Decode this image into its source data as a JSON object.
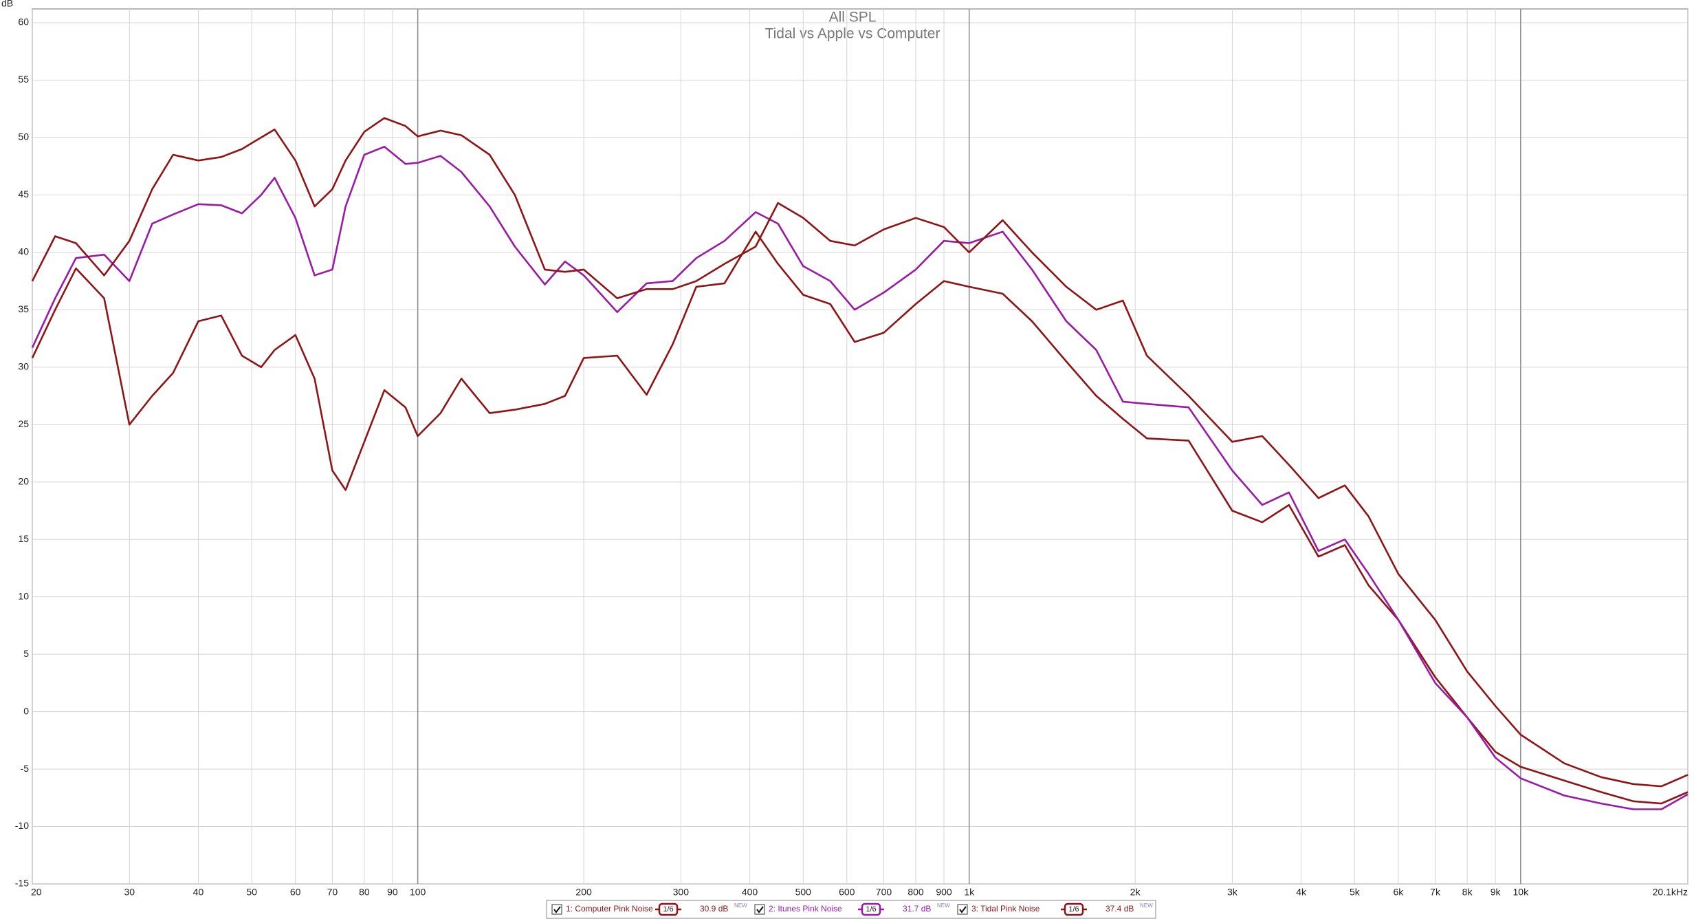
{
  "chart_data": {
    "type": "line",
    "title": "All SPL",
    "subtitle": "Tidal vs Apple vs Computer",
    "y_label": "dB",
    "xscale": "log",
    "grid": true,
    "xlim": [
      20,
      20100
    ],
    "ylim": [
      -15,
      60
    ],
    "xticks": [
      20,
      30,
      40,
      50,
      60,
      70,
      80,
      90,
      100,
      200,
      300,
      400,
      500,
      600,
      700,
      800,
      900,
      {
        "value": 1000,
        "label": "1k"
      },
      {
        "value": 2000,
        "label": "2k"
      },
      {
        "value": 3000,
        "label": "3k"
      },
      {
        "value": 4000,
        "label": "4k"
      },
      {
        "value": 5000,
        "label": "5k"
      },
      {
        "value": 6000,
        "label": "6k"
      },
      {
        "value": 7000,
        "label": "7k"
      },
      {
        "value": 8000,
        "label": "8k"
      },
      {
        "value": 9000,
        "label": "9k"
      },
      {
        "value": 10000,
        "label": "10k"
      },
      {
        "value": 20100,
        "label": "20.1kHz"
      }
    ],
    "yticks": [
      -15,
      -10,
      -5,
      0,
      5,
      10,
      15,
      20,
      25,
      30,
      35,
      40,
      45,
      50,
      55,
      60
    ],
    "x": [
      20,
      22,
      24,
      27,
      30,
      33,
      36,
      40,
      44,
      48,
      52,
      55,
      60,
      65,
      70,
      74,
      80,
      87,
      95,
      100,
      110,
      120,
      135,
      150,
      170,
      185,
      200,
      230,
      260,
      290,
      320,
      360,
      410,
      450,
      500,
      560,
      620,
      700,
      800,
      900,
      1000,
      1150,
      1300,
      1500,
      1700,
      1900,
      2100,
      2500,
      3000,
      3400,
      3800,
      4300,
      4800,
      5300,
      6000,
      7000,
      8000,
      9000,
      10000,
      12000,
      14000,
      16000,
      18000,
      20100
    ],
    "series": [
      {
        "name": "1: Computer Pink Noise",
        "color": "#8e1416",
        "smoothing": "1/6",
        "level": "30.9 dB",
        "tag": "NEW",
        "values": [
          30.8,
          35,
          38.6,
          36,
          25,
          27.5,
          29.5,
          34,
          34.5,
          31,
          30,
          31.5,
          32.8,
          29,
          21,
          19.3,
          23.5,
          28,
          26.5,
          24,
          26,
          29,
          26,
          26.3,
          26.8,
          27.5,
          30.8,
          31,
          27.6,
          32,
          37,
          37.3,
          41.8,
          39,
          36.3,
          35.5,
          32.2,
          33,
          35.5,
          37.5,
          37,
          36.4,
          34,
          30.5,
          27.5,
          25.5,
          23.8,
          23.6,
          17.5,
          16.5,
          18,
          13.5,
          14.5,
          11,
          8,
          3,
          -0.5,
          -3.5,
          -4.8,
          -6,
          -7,
          -7.8,
          -8,
          -7
        ]
      },
      {
        "name": "2: Itunes Pink Noise",
        "color": "#9a1aa6",
        "smoothing": "1/6",
        "level": "31.7 dB",
        "tag": "NEW",
        "values": [
          31.7,
          36,
          39.5,
          39.8,
          37.5,
          42.5,
          43.3,
          44.2,
          44.1,
          43.4,
          45,
          46.5,
          43,
          38,
          38.5,
          44,
          48.5,
          49.2,
          47.7,
          47.8,
          48.4,
          47,
          44,
          40.5,
          37.2,
          39.2,
          38,
          34.8,
          37.3,
          37.5,
          39.5,
          41,
          43.5,
          42.5,
          38.8,
          37.5,
          35,
          36.5,
          38.5,
          41,
          40.8,
          41.8,
          38.5,
          34,
          31.5,
          27,
          26.8,
          26.5,
          21,
          18,
          19.1,
          14,
          15,
          12,
          8,
          2.5,
          -0.5,
          -4,
          -5.8,
          -7.3,
          -8,
          -8.5,
          -8.5,
          -7.2
        ]
      },
      {
        "name": "3: Tidal Pink Noise",
        "color": "#8e1416",
        "smoothing": "1/6",
        "level": "37.4 dB",
        "tag": "NEW",
        "values": [
          37.5,
          41.4,
          40.8,
          38,
          41,
          45.5,
          48.5,
          48,
          48.3,
          49,
          50,
          50.7,
          48,
          44,
          45.5,
          48,
          50.5,
          51.7,
          51,
          50.1,
          50.6,
          50.2,
          48.5,
          45,
          38.5,
          38.3,
          38.5,
          36,
          36.8,
          36.8,
          37.5,
          39,
          40.5,
          44.3,
          43,
          41,
          40.6,
          42,
          43,
          42.2,
          40,
          42.8,
          40,
          37,
          35,
          35.8,
          31,
          27.5,
          23.5,
          24,
          21.5,
          18.6,
          19.7,
          17,
          12,
          8,
          3.5,
          0.5,
          -2,
          -4.5,
          -5.7,
          -6.3,
          -6.5,
          -5.5
        ]
      }
    ]
  }
}
